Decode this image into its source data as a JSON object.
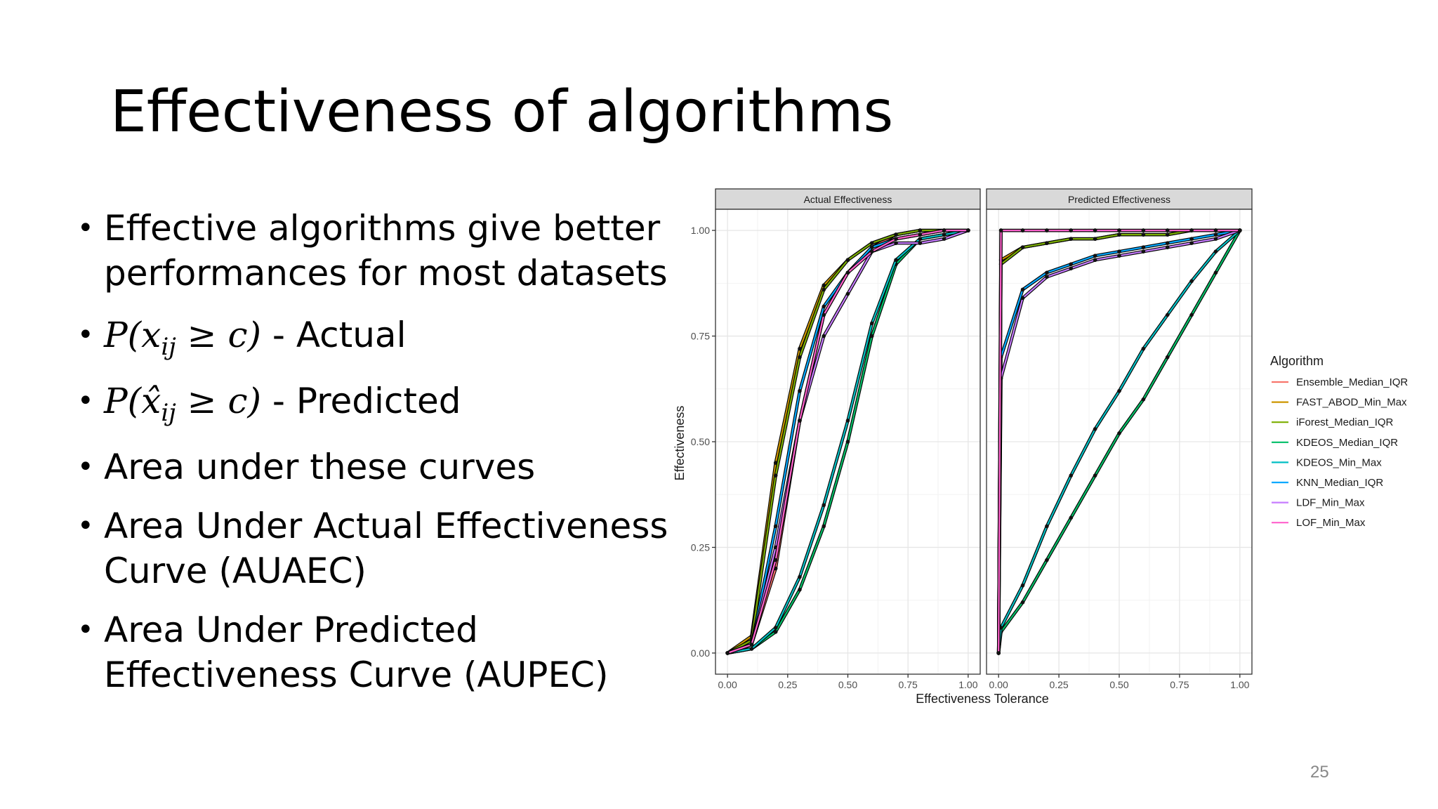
{
  "title": "Effectiveness of algorithms",
  "bullets": [
    {
      "text": "Effective algorithms give better"
    },
    {
      "text": "performances for most datasets"
    },
    {
      "formula": [
        "P(",
        "x",
        "ij",
        " ≥ c)"
      ],
      "text": " - Actual"
    },
    {
      "formula": [
        "P(",
        "x̂",
        "ij",
        " ≥ c)"
      ],
      "text": " - Predicted"
    },
    {
      "text": "Area under these curves"
    },
    {
      "text": "Area Under Actual Effectiveness"
    },
    {
      "text": "Curve (AUAEC)"
    },
    {
      "text": "Area Under Predicted"
    },
    {
      "text": "Effectiveness Curve (AUPEC)"
    }
  ],
  "page_number": "25",
  "chart_data": [
    {
      "type": "line",
      "title": "Actual Effectiveness",
      "xlabel": "Effectiveness Tolerance",
      "ylabel": "Effectiveness",
      "legend_title": "Algorithm",
      "grid": true,
      "xlim": [
        -0.05,
        1.05
      ],
      "ylim": [
        -0.05,
        1.05
      ],
      "xticks": [
        {
          "value": 0,
          "label": "0.00"
        },
        {
          "value": 0.25,
          "label": "0.25"
        },
        {
          "value": 0.5,
          "label": "0.50"
        },
        {
          "value": 0.75,
          "label": "0.75"
        },
        {
          "value": 1,
          "label": "1.00"
        }
      ],
      "yticks": [
        {
          "value": 0,
          "label": "0.00"
        },
        {
          "value": 0.25,
          "label": "0.25"
        },
        {
          "value": 0.5,
          "label": "0.50"
        },
        {
          "value": 0.75,
          "label": "0.75"
        },
        {
          "value": 1,
          "label": "1.00"
        }
      ],
      "x": [
        0,
        0.1,
        0.2,
        0.3,
        0.4,
        0.5,
        0.6,
        0.7,
        0.8,
        0.9,
        1.0
      ],
      "series": [
        {
          "name": "Ensemble_Median_IQR",
          "color": "#F8766D",
          "values": [
            0,
            0.02,
            0.2,
            0.55,
            0.8,
            0.9,
            0.96,
            0.99,
            1,
            1,
            1
          ]
        },
        {
          "name": "FAST_ABOD_Min_Max",
          "color": "#CD9600",
          "values": [
            0,
            0.04,
            0.45,
            0.72,
            0.87,
            0.93,
            0.97,
            0.99,
            1,
            1,
            1
          ]
        },
        {
          "name": "iForest_Median_IQR",
          "color": "#7CAE00",
          "values": [
            0,
            0.03,
            0.42,
            0.7,
            0.86,
            0.93,
            0.97,
            0.99,
            1,
            1,
            1
          ]
        },
        {
          "name": "KDEOS_Median_IQR",
          "color": "#00BE67",
          "values": [
            0,
            0.01,
            0.05,
            0.15,
            0.3,
            0.5,
            0.75,
            0.92,
            0.98,
            0.99,
            1
          ]
        },
        {
          "name": "KDEOS_Min_Max",
          "color": "#00BFC4",
          "values": [
            0,
            0.01,
            0.06,
            0.18,
            0.35,
            0.55,
            0.78,
            0.93,
            0.98,
            0.99,
            1
          ]
        },
        {
          "name": "KNN_Median_IQR",
          "color": "#00A9FF",
          "values": [
            0,
            0.02,
            0.3,
            0.62,
            0.82,
            0.9,
            0.96,
            0.98,
            0.99,
            1,
            1
          ]
        },
        {
          "name": "LDF_Min_Max",
          "color": "#C77CFF",
          "values": [
            0,
            0.02,
            0.25,
            0.55,
            0.75,
            0.85,
            0.95,
            0.97,
            0.97,
            0.98,
            1
          ]
        },
        {
          "name": "LOF_Min_Max",
          "color": "#FF61CC",
          "values": [
            0,
            0.02,
            0.22,
            0.55,
            0.8,
            0.9,
            0.95,
            0.98,
            0.99,
            1,
            1
          ]
        }
      ]
    },
    {
      "type": "line",
      "title": "Predicted Effectiveness",
      "grid": true,
      "xlim": [
        -0.05,
        1.05
      ],
      "ylim": [
        -0.05,
        1.05
      ],
      "xticks": [
        {
          "value": 0,
          "label": "0.00"
        },
        {
          "value": 0.25,
          "label": "0.25"
        },
        {
          "value": 0.5,
          "label": "0.50"
        },
        {
          "value": 0.75,
          "label": "0.75"
        },
        {
          "value": 1,
          "label": "1.00"
        }
      ],
      "yticks": [
        0,
        0.25,
        0.5,
        0.75,
        1
      ],
      "x": [
        0,
        0.01,
        0.1,
        0.2,
        0.3,
        0.4,
        0.5,
        0.6,
        0.7,
        0.8,
        0.9,
        1.0
      ],
      "series": [
        {
          "values": [
            0,
            1,
            1,
            1,
            1,
            1,
            1,
            1,
            1,
            1,
            1,
            1
          ]
        },
        {
          "values": [
            0,
            0.93,
            0.96,
            0.97,
            0.98,
            0.98,
            0.99,
            0.99,
            0.99,
            1,
            1,
            1
          ]
        },
        {
          "values": [
            0,
            0.92,
            0.96,
            0.97,
            0.98,
            0.98,
            0.99,
            0.99,
            0.99,
            1,
            1,
            1
          ]
        },
        {
          "values": [
            0,
            0.05,
            0.12,
            0.22,
            0.32,
            0.42,
            0.52,
            0.6,
            0.7,
            0.8,
            0.9,
            1
          ]
        },
        {
          "values": [
            0,
            0.06,
            0.16,
            0.3,
            0.42,
            0.53,
            0.62,
            0.72,
            0.8,
            0.88,
            0.95,
            1
          ]
        },
        {
          "values": [
            0,
            0.7,
            0.86,
            0.9,
            0.92,
            0.94,
            0.95,
            0.96,
            0.97,
            0.98,
            0.99,
            1
          ]
        },
        {
          "values": [
            0,
            0.65,
            0.84,
            0.89,
            0.91,
            0.93,
            0.94,
            0.95,
            0.96,
            0.97,
            0.98,
            1
          ]
        },
        {
          "values": [
            0,
            1,
            1,
            1,
            1,
            1,
            1,
            1,
            1,
            1,
            1,
            1
          ]
        }
      ]
    }
  ]
}
